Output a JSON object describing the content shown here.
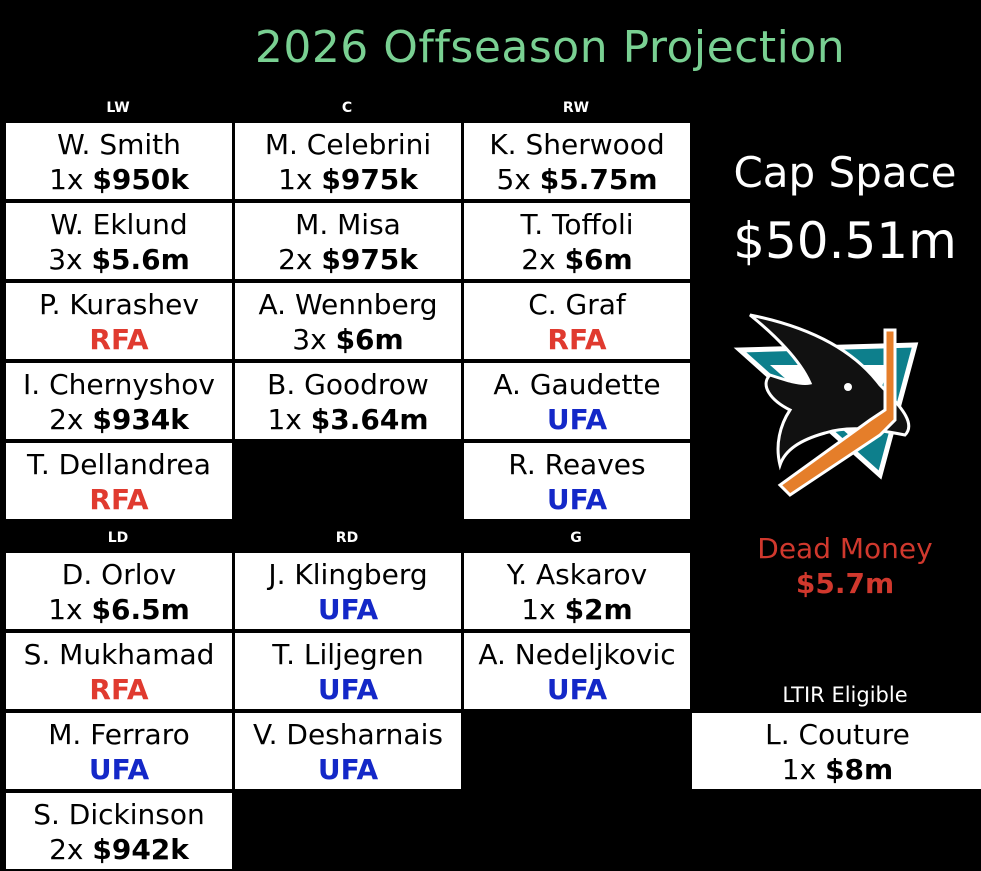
{
  "title": "2026 Offseason Projection",
  "headers": {
    "lw": "LW",
    "c": "C",
    "rw": "RW",
    "ld": "LD",
    "rd": "RD",
    "g": "G"
  },
  "forwards": {
    "lw": [
      {
        "name": "W. Smith",
        "years": "1x",
        "salary": "$950k",
        "status": ""
      },
      {
        "name": "W. Eklund",
        "years": "3x",
        "salary": "$5.6m",
        "status": ""
      },
      {
        "name": "P. Kurashev",
        "years": "",
        "salary": "",
        "status": "RFA"
      },
      {
        "name": "I. Chernyshov",
        "years": "2x",
        "salary": "$934k",
        "status": ""
      },
      {
        "name": "T. Dellandrea",
        "years": "",
        "salary": "",
        "status": "RFA"
      }
    ],
    "c": [
      {
        "name": "M. Celebrini",
        "years": "1x",
        "salary": "$975k",
        "status": ""
      },
      {
        "name": "M. Misa",
        "years": "2x",
        "salary": "$975k",
        "status": ""
      },
      {
        "name": "A. Wennberg",
        "years": "3x",
        "salary": "$6m",
        "status": ""
      },
      {
        "name": "B. Goodrow",
        "years": "1x",
        "salary": "$3.64m",
        "status": ""
      }
    ],
    "rw": [
      {
        "name": "K. Sherwood",
        "years": "5x",
        "salary": "$5.75m",
        "status": ""
      },
      {
        "name": "T. Toffoli",
        "years": "2x",
        "salary": "$6m",
        "status": ""
      },
      {
        "name": "C. Graf",
        "years": "",
        "salary": "",
        "status": "RFA"
      },
      {
        "name": "A. Gaudette",
        "years": "",
        "salary": "",
        "status": "UFA"
      },
      {
        "name": "R. Reaves",
        "years": "",
        "salary": "",
        "status": "UFA"
      }
    ]
  },
  "defense": {
    "ld": [
      {
        "name": "D. Orlov",
        "years": "1x",
        "salary": "$6.5m",
        "status": ""
      },
      {
        "name": "S. Mukhamad",
        "years": "",
        "salary": "",
        "status": "RFA"
      },
      {
        "name": "M. Ferraro",
        "years": "",
        "salary": "",
        "status": "UFA"
      },
      {
        "name": "S. Dickinson",
        "years": "2x",
        "salary": "$942k",
        "status": ""
      }
    ],
    "rd": [
      {
        "name": "J. Klingberg",
        "years": "",
        "salary": "",
        "status": "UFA"
      },
      {
        "name": "T. Liljegren",
        "years": "",
        "salary": "",
        "status": "UFA"
      },
      {
        "name": "V. Desharnais",
        "years": "",
        "salary": "",
        "status": "UFA"
      }
    ]
  },
  "goalies": [
    {
      "name": "Y. Askarov",
      "years": "1x",
      "salary": "$2m",
      "status": ""
    },
    {
      "name": "A. Nedeljkovic",
      "years": "",
      "salary": "",
      "status": "UFA"
    }
  ],
  "cap_space": {
    "label": "Cap Space",
    "value": "$50.51m"
  },
  "dead_money": {
    "label": "Dead Money",
    "value": "$5.7m"
  },
  "ltir": {
    "label": "LTIR Eligible",
    "player": {
      "name": "L. Couture",
      "years": "1x",
      "salary": "$8m",
      "status": ""
    }
  },
  "logo": {
    "icon": "shark-logo-icon",
    "colors": {
      "teal": "#0d7f8c",
      "orange": "#e57e2a",
      "black": "#000000"
    }
  }
}
